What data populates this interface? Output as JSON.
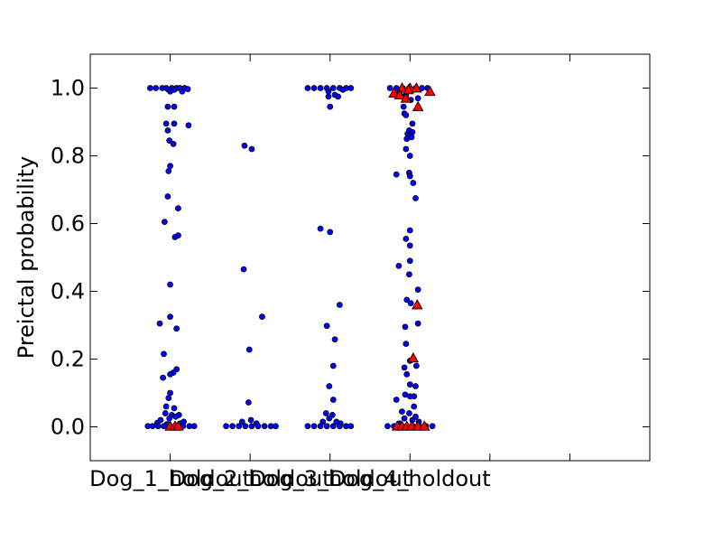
{
  "chart_data": {
    "type": "scatter",
    "title": "",
    "xlabel": "",
    "ylabel": "Preictal probability",
    "ylim": [
      -0.1,
      1.1
    ],
    "yticks": [
      "0.0",
      "0.2",
      "0.4",
      "0.6",
      "0.8",
      "1.0"
    ],
    "ytick_values": [
      0.0,
      0.2,
      0.4,
      0.6,
      0.8,
      1.0
    ],
    "categories": [
      "Dog_1_holdout",
      "Dog_2_holdout",
      "Dog_3_holdout",
      "Dog_4_holdout"
    ],
    "interictal_color": "#0000ff",
    "preictal_color": "#ff0000",
    "series": [
      {
        "marker": "circle",
        "points": [
          {
            "x": 1,
            "y": 1.0,
            "dx": -0.25
          },
          {
            "x": 1,
            "y": 1.0,
            "dx": -0.18
          },
          {
            "x": 1,
            "y": 1.0,
            "dx": -0.1
          },
          {
            "x": 1,
            "y": 1.0,
            "dx": -0.05
          },
          {
            "x": 1,
            "y": 1.0,
            "dx": 0.02
          },
          {
            "x": 1,
            "y": 1.0,
            "dx": 0.08
          },
          {
            "x": 1,
            "y": 1.0,
            "dx": 0.12
          },
          {
            "x": 1,
            "y": 1.0,
            "dx": 0.18
          },
          {
            "x": 1,
            "y": 0.997,
            "dx": 0.22
          },
          {
            "x": 1,
            "y": 0.995,
            "dx": -0.02
          },
          {
            "x": 1,
            "y": 0.995,
            "dx": 0.05
          },
          {
            "x": 1,
            "y": 0.99,
            "dx": 0.15
          },
          {
            "x": 1,
            "y": 0.99,
            "dx": 0.0
          },
          {
            "x": 1,
            "y": 0.945,
            "dx": -0.03
          },
          {
            "x": 1,
            "y": 0.945,
            "dx": 0.05
          },
          {
            "x": 1,
            "y": 0.895,
            "dx": -0.05
          },
          {
            "x": 1,
            "y": 0.895,
            "dx": 0.05
          },
          {
            "x": 1,
            "y": 0.89,
            "dx": 0.23
          },
          {
            "x": 1,
            "y": 0.875,
            "dx": -0.03
          },
          {
            "x": 1,
            "y": 0.845,
            "dx": -0.01
          },
          {
            "x": 1,
            "y": 0.835,
            "dx": 0.04
          },
          {
            "x": 1,
            "y": 0.77,
            "dx": 0.0
          },
          {
            "x": 1,
            "y": 0.755,
            "dx": -0.02
          },
          {
            "x": 1,
            "y": 0.68,
            "dx": -0.03
          },
          {
            "x": 1,
            "y": 0.645,
            "dx": 0.1
          },
          {
            "x": 1,
            "y": 0.605,
            "dx": -0.07
          },
          {
            "x": 1,
            "y": 0.565,
            "dx": 0.1
          },
          {
            "x": 1,
            "y": 0.56,
            "dx": 0.06
          },
          {
            "x": 1,
            "y": 0.42,
            "dx": 0.0
          },
          {
            "x": 1,
            "y": 0.325,
            "dx": 0.0
          },
          {
            "x": 1,
            "y": 0.305,
            "dx": -0.13
          },
          {
            "x": 1,
            "y": 0.29,
            "dx": 0.08
          },
          {
            "x": 1,
            "y": 0.215,
            "dx": -0.08
          },
          {
            "x": 1,
            "y": 0.17,
            "dx": 0.08
          },
          {
            "x": 1,
            "y": 0.16,
            "dx": 0.04
          },
          {
            "x": 1,
            "y": 0.155,
            "dx": 0.0
          },
          {
            "x": 1,
            "y": 0.145,
            "dx": -0.09
          },
          {
            "x": 1,
            "y": 0.1,
            "dx": 0.0
          },
          {
            "x": 1,
            "y": 0.085,
            "dx": -0.02
          },
          {
            "x": 1,
            "y": 0.06,
            "dx": -0.05
          },
          {
            "x": 1,
            "y": 0.055,
            "dx": 0.05
          },
          {
            "x": 1,
            "y": 0.04,
            "dx": -0.06
          },
          {
            "x": 1,
            "y": 0.035,
            "dx": 0.02
          },
          {
            "x": 1,
            "y": 0.035,
            "dx": 0.11
          },
          {
            "x": 1,
            "y": 0.03,
            "dx": 0.07
          },
          {
            "x": 1,
            "y": 0.025,
            "dx": -0.01
          },
          {
            "x": 1,
            "y": 0.02,
            "dx": -0.12
          },
          {
            "x": 1,
            "y": 0.015,
            "dx": 0.17
          },
          {
            "x": 1,
            "y": 0.012,
            "dx": -0.16
          },
          {
            "x": 1,
            "y": 0.01,
            "dx": 0.13
          },
          {
            "x": 1,
            "y": 0.008,
            "dx": -0.04
          },
          {
            "x": 1,
            "y": 0.002,
            "dx": -0.28
          },
          {
            "x": 1,
            "y": 0.002,
            "dx": -0.22
          },
          {
            "x": 1,
            "y": 0.002,
            "dx": -0.15
          },
          {
            "x": 1,
            "y": 0.002,
            "dx": -0.08
          },
          {
            "x": 1,
            "y": 0.002,
            "dx": 0.0
          },
          {
            "x": 1,
            "y": 0.002,
            "dx": 0.08
          },
          {
            "x": 1,
            "y": 0.002,
            "dx": 0.16
          },
          {
            "x": 1,
            "y": 0.002,
            "dx": 0.24
          },
          {
            "x": 1,
            "y": 0.002,
            "dx": 0.3
          },
          {
            "x": 2,
            "y": 0.83,
            "dx": -0.07
          },
          {
            "x": 2,
            "y": 0.82,
            "dx": 0.02
          },
          {
            "x": 2,
            "y": 0.465,
            "dx": -0.08
          },
          {
            "x": 2,
            "y": 0.325,
            "dx": 0.15
          },
          {
            "x": 2,
            "y": 0.228,
            "dx": -0.01
          },
          {
            "x": 2,
            "y": 0.072,
            "dx": -0.02
          },
          {
            "x": 2,
            "y": 0.02,
            "dx": 0.01
          },
          {
            "x": 2,
            "y": 0.015,
            "dx": -0.1
          },
          {
            "x": 2,
            "y": 0.01,
            "dx": 0.08
          },
          {
            "x": 2,
            "y": 0.002,
            "dx": -0.3
          },
          {
            "x": 2,
            "y": 0.002,
            "dx": -0.22
          },
          {
            "x": 2,
            "y": 0.002,
            "dx": -0.14
          },
          {
            "x": 2,
            "y": 0.002,
            "dx": -0.06
          },
          {
            "x": 2,
            "y": 0.002,
            "dx": 0.02
          },
          {
            "x": 2,
            "y": 0.002,
            "dx": 0.1
          },
          {
            "x": 2,
            "y": 0.002,
            "dx": 0.18
          },
          {
            "x": 2,
            "y": 0.002,
            "dx": 0.26
          },
          {
            "x": 2,
            "y": 0.002,
            "dx": 0.32
          },
          {
            "x": 3,
            "y": 1.0,
            "dx": -0.28
          },
          {
            "x": 3,
            "y": 1.0,
            "dx": -0.2
          },
          {
            "x": 3,
            "y": 1.0,
            "dx": -0.12
          },
          {
            "x": 3,
            "y": 1.0,
            "dx": -0.04
          },
          {
            "x": 3,
            "y": 1.0,
            "dx": 0.04
          },
          {
            "x": 3,
            "y": 1.0,
            "dx": 0.12
          },
          {
            "x": 3,
            "y": 1.0,
            "dx": 0.2
          },
          {
            "x": 3,
            "y": 1.0,
            "dx": 0.26
          },
          {
            "x": 3,
            "y": 0.995,
            "dx": 0.16
          },
          {
            "x": 3,
            "y": 0.99,
            "dx": -0.02
          },
          {
            "x": 3,
            "y": 0.98,
            "dx": 0.06
          },
          {
            "x": 3,
            "y": 0.975,
            "dx": -0.02
          },
          {
            "x": 3,
            "y": 0.975,
            "dx": 0.1
          },
          {
            "x": 3,
            "y": 0.945,
            "dx": 0.0
          },
          {
            "x": 3,
            "y": 0.585,
            "dx": -0.12
          },
          {
            "x": 3,
            "y": 0.575,
            "dx": 0.0
          },
          {
            "x": 3,
            "y": 0.36,
            "dx": 0.12
          },
          {
            "x": 3,
            "y": 0.298,
            "dx": -0.04
          },
          {
            "x": 3,
            "y": 0.258,
            "dx": 0.06
          },
          {
            "x": 3,
            "y": 0.18,
            "dx": 0.04
          },
          {
            "x": 3,
            "y": 0.12,
            "dx": -0.01
          },
          {
            "x": 3,
            "y": 0.08,
            "dx": 0.04
          },
          {
            "x": 3,
            "y": 0.04,
            "dx": -0.05
          },
          {
            "x": 3,
            "y": 0.035,
            "dx": 0.03
          },
          {
            "x": 3,
            "y": 0.025,
            "dx": -0.01
          },
          {
            "x": 3,
            "y": 0.015,
            "dx": -0.09
          },
          {
            "x": 3,
            "y": 0.015,
            "dx": 0.08
          },
          {
            "x": 3,
            "y": 0.01,
            "dx": 0.13
          },
          {
            "x": 3,
            "y": 0.002,
            "dx": -0.28
          },
          {
            "x": 3,
            "y": 0.002,
            "dx": -0.2
          },
          {
            "x": 3,
            "y": 0.002,
            "dx": -0.12
          },
          {
            "x": 3,
            "y": 0.002,
            "dx": -0.04
          },
          {
            "x": 3,
            "y": 0.002,
            "dx": 0.04
          },
          {
            "x": 3,
            "y": 0.002,
            "dx": 0.12
          },
          {
            "x": 3,
            "y": 0.002,
            "dx": 0.2
          },
          {
            "x": 3,
            "y": 0.002,
            "dx": 0.26
          },
          {
            "x": 4,
            "y": 1.0,
            "dx": -0.25
          },
          {
            "x": 4,
            "y": 1.0,
            "dx": -0.17
          },
          {
            "x": 4,
            "y": 1.0,
            "dx": -0.09
          },
          {
            "x": 4,
            "y": 1.0,
            "dx": -0.01
          },
          {
            "x": 4,
            "y": 1.0,
            "dx": 0.07
          },
          {
            "x": 4,
            "y": 1.0,
            "dx": 0.15
          },
          {
            "x": 4,
            "y": 1.0,
            "dx": 0.22
          },
          {
            "x": 4,
            "y": 0.995,
            "dx": 0.04
          },
          {
            "x": 4,
            "y": 0.99,
            "dx": -0.13
          },
          {
            "x": 4,
            "y": 0.98,
            "dx": -0.05
          },
          {
            "x": 4,
            "y": 0.975,
            "dx": -0.1
          },
          {
            "x": 4,
            "y": 0.97,
            "dx": 0.1
          },
          {
            "x": 4,
            "y": 0.965,
            "dx": 0.01
          },
          {
            "x": 4,
            "y": 0.945,
            "dx": -0.08
          },
          {
            "x": 4,
            "y": 0.925,
            "dx": -0.07
          },
          {
            "x": 4,
            "y": 0.92,
            "dx": -0.05
          },
          {
            "x": 4,
            "y": 0.895,
            "dx": 0.03
          },
          {
            "x": 4,
            "y": 0.875,
            "dx": -0.01
          },
          {
            "x": 4,
            "y": 0.87,
            "dx": 0.03
          },
          {
            "x": 4,
            "y": 0.865,
            "dx": -0.03
          },
          {
            "x": 4,
            "y": 0.86,
            "dx": -0.01
          },
          {
            "x": 4,
            "y": 0.855,
            "dx": 0.02
          },
          {
            "x": 4,
            "y": 0.85,
            "dx": -0.04
          },
          {
            "x": 4,
            "y": 0.82,
            "dx": -0.05
          },
          {
            "x": 4,
            "y": 0.8,
            "dx": 0.0
          },
          {
            "x": 4,
            "y": 0.75,
            "dx": -0.01
          },
          {
            "x": 4,
            "y": 0.745,
            "dx": -0.17
          },
          {
            "x": 4,
            "y": 0.74,
            "dx": 0.0
          },
          {
            "x": 4,
            "y": 0.72,
            "dx": 0.04
          },
          {
            "x": 4,
            "y": 0.675,
            "dx": 0.07
          },
          {
            "x": 4,
            "y": 0.58,
            "dx": 0.0
          },
          {
            "x": 4,
            "y": 0.555,
            "dx": -0.05
          },
          {
            "x": 4,
            "y": 0.535,
            "dx": 0.0
          },
          {
            "x": 4,
            "y": 0.49,
            "dx": 0.0
          },
          {
            "x": 4,
            "y": 0.475,
            "dx": -0.14
          },
          {
            "x": 4,
            "y": 0.45,
            "dx": -0.01
          },
          {
            "x": 4,
            "y": 0.405,
            "dx": 0.1
          },
          {
            "x": 4,
            "y": 0.375,
            "dx": -0.04
          },
          {
            "x": 4,
            "y": 0.365,
            "dx": 0.01
          },
          {
            "x": 4,
            "y": 0.305,
            "dx": 0.1
          },
          {
            "x": 4,
            "y": 0.295,
            "dx": -0.06
          },
          {
            "x": 4,
            "y": 0.245,
            "dx": -0.05
          },
          {
            "x": 4,
            "y": 0.195,
            "dx": 0.0
          },
          {
            "x": 4,
            "y": 0.18,
            "dx": 0.08
          },
          {
            "x": 4,
            "y": 0.175,
            "dx": -0.07
          },
          {
            "x": 4,
            "y": 0.155,
            "dx": -0.04
          },
          {
            "x": 4,
            "y": 0.125,
            "dx": 0.0
          },
          {
            "x": 4,
            "y": 0.12,
            "dx": 0.07
          },
          {
            "x": 4,
            "y": 0.095,
            "dx": -0.06
          },
          {
            "x": 4,
            "y": 0.09,
            "dx": 0.0
          },
          {
            "x": 4,
            "y": 0.09,
            "dx": 0.05
          },
          {
            "x": 4,
            "y": 0.08,
            "dx": -0.17
          },
          {
            "x": 4,
            "y": 0.06,
            "dx": 0.05
          },
          {
            "x": 4,
            "y": 0.045,
            "dx": -0.1
          },
          {
            "x": 4,
            "y": 0.04,
            "dx": -0.01
          },
          {
            "x": 4,
            "y": 0.03,
            "dx": 0.07
          },
          {
            "x": 4,
            "y": 0.025,
            "dx": -0.07
          },
          {
            "x": 4,
            "y": 0.02,
            "dx": 0.03
          },
          {
            "x": 4,
            "y": 0.015,
            "dx": 0.11
          },
          {
            "x": 4,
            "y": 0.01,
            "dx": -0.13
          },
          {
            "x": 4,
            "y": 0.002,
            "dx": -0.28
          },
          {
            "x": 4,
            "y": 0.002,
            "dx": -0.2
          },
          {
            "x": 4,
            "y": 0.002,
            "dx": -0.12
          },
          {
            "x": 4,
            "y": 0.002,
            "dx": -0.04
          },
          {
            "x": 4,
            "y": 0.002,
            "dx": 0.04
          },
          {
            "x": 4,
            "y": 0.002,
            "dx": 0.12
          },
          {
            "x": 4,
            "y": 0.002,
            "dx": 0.2
          },
          {
            "x": 4,
            "y": 0.002,
            "dx": 0.28
          }
        ]
      },
      {
        "marker": "triangle",
        "points": [
          {
            "x": 1,
            "y": 0.002,
            "dx": 0.0
          },
          {
            "x": 1,
            "y": 0.002,
            "dx": 0.06
          },
          {
            "x": 1,
            "y": 0.002,
            "dx": 0.1
          },
          {
            "x": 4,
            "y": 1.0,
            "dx": -0.1
          },
          {
            "x": 4,
            "y": 1.0,
            "dx": 0.0
          },
          {
            "x": 4,
            "y": 1.0,
            "dx": 0.08
          },
          {
            "x": 4,
            "y": 0.995,
            "dx": -0.02
          },
          {
            "x": 4,
            "y": 0.99,
            "dx": 0.25
          },
          {
            "x": 4,
            "y": 0.985,
            "dx": -0.2
          },
          {
            "x": 4,
            "y": 0.98,
            "dx": -0.13
          },
          {
            "x": 4,
            "y": 0.97,
            "dx": -0.05
          },
          {
            "x": 4,
            "y": 0.945,
            "dx": 0.1
          },
          {
            "x": 4,
            "y": 0.36,
            "dx": 0.09
          },
          {
            "x": 4,
            "y": 0.203,
            "dx": 0.04
          },
          {
            "x": 4,
            "y": 0.002,
            "dx": -0.16
          },
          {
            "x": 4,
            "y": 0.002,
            "dx": -0.1
          },
          {
            "x": 4,
            "y": 0.002,
            "dx": -0.04
          },
          {
            "x": 4,
            "y": 0.002,
            "dx": 0.02
          },
          {
            "x": 4,
            "y": 0.002,
            "dx": 0.1
          },
          {
            "x": 4,
            "y": 0.002,
            "dx": 0.18
          }
        ]
      }
    ]
  }
}
